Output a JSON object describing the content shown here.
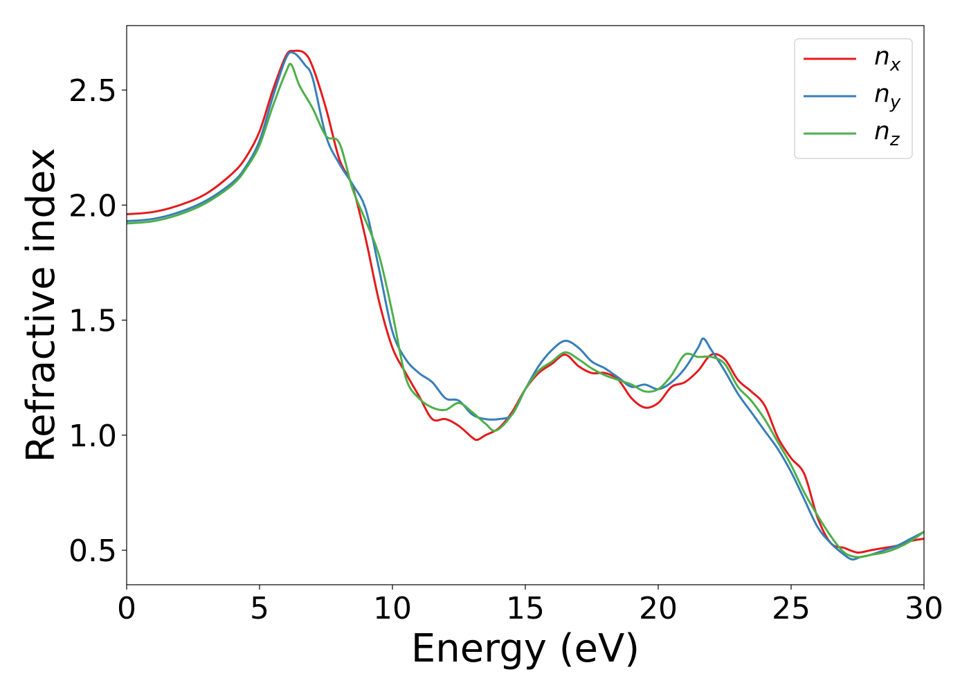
{
  "chart_data": {
    "type": "line",
    "xlabel": "Energy (eV)",
    "ylabel": "Refractive index",
    "xlim": [
      0,
      30
    ],
    "ylim": [
      0.35,
      2.78
    ],
    "xticks": [
      0,
      5,
      10,
      15,
      20,
      25,
      30
    ],
    "xtick_labels": [
      "0",
      "5",
      "10",
      "15",
      "20",
      "25",
      "30"
    ],
    "yticks": [
      0.5,
      1.0,
      1.5,
      2.0,
      2.5
    ],
    "ytick_labels": [
      "0.5",
      "1.0",
      "1.5",
      "2.0",
      "2.5"
    ],
    "grid": false,
    "legend_position": "top-right",
    "series": [
      {
        "name": "n_x",
        "label_main": "n",
        "label_sub": "x",
        "color": "#e41a1c",
        "x": [
          0,
          1,
          2,
          3,
          4,
          4.5,
          5,
          5.5,
          6,
          6.3,
          6.7,
          7,
          7.5,
          8,
          8.5,
          9,
          9.5,
          10,
          10.5,
          11,
          11.5,
          12,
          12.5,
          13,
          13.2,
          13.5,
          14,
          14.5,
          15,
          15.5,
          16,
          16.5,
          17,
          17.5,
          18,
          18.5,
          19,
          19.5,
          20,
          20.5,
          21,
          21.5,
          22,
          22.5,
          23,
          23.5,
          24,
          24.5,
          25,
          25.5,
          26,
          26.5,
          27,
          27.5,
          28,
          28.5,
          29,
          29.5,
          30
        ],
        "y": [
          1.96,
          1.97,
          2.0,
          2.05,
          2.14,
          2.21,
          2.32,
          2.5,
          2.65,
          2.67,
          2.66,
          2.6,
          2.42,
          2.2,
          2.08,
          1.85,
          1.58,
          1.38,
          1.27,
          1.17,
          1.07,
          1.07,
          1.04,
          0.99,
          0.98,
          1.0,
          1.03,
          1.1,
          1.2,
          1.27,
          1.31,
          1.35,
          1.3,
          1.27,
          1.27,
          1.24,
          1.16,
          1.12,
          1.14,
          1.21,
          1.23,
          1.28,
          1.35,
          1.33,
          1.24,
          1.19,
          1.13,
          0.99,
          0.9,
          0.83,
          0.64,
          0.53,
          0.51,
          0.49,
          0.5,
          0.51,
          0.52,
          0.54,
          0.55
        ]
      },
      {
        "name": "n_y",
        "label_main": "n",
        "label_sub": "y",
        "color": "#377eb8",
        "x": [
          0,
          1,
          2,
          3,
          4,
          4.5,
          5,
          5.5,
          6,
          6.3,
          6.7,
          7,
          7.5,
          8,
          8.5,
          9,
          9.5,
          10,
          10.5,
          11,
          11.5,
          12,
          12.5,
          13,
          13.5,
          14,
          14.5,
          15,
          15.5,
          16,
          16.5,
          17,
          17.5,
          18,
          18.5,
          19,
          19.5,
          20,
          20.5,
          21,
          21.5,
          21.7,
          22,
          22.5,
          23,
          23.5,
          24,
          24.5,
          25,
          25.5,
          26,
          26.5,
          27,
          27.3,
          27.6,
          28,
          28.5,
          29,
          29.5,
          30
        ],
        "y": [
          1.93,
          1.94,
          1.97,
          2.02,
          2.1,
          2.17,
          2.28,
          2.47,
          2.64,
          2.66,
          2.61,
          2.55,
          2.3,
          2.18,
          2.09,
          1.98,
          1.72,
          1.45,
          1.33,
          1.27,
          1.23,
          1.16,
          1.15,
          1.09,
          1.07,
          1.07,
          1.09,
          1.2,
          1.3,
          1.37,
          1.41,
          1.38,
          1.32,
          1.29,
          1.25,
          1.21,
          1.22,
          1.2,
          1.23,
          1.29,
          1.38,
          1.42,
          1.37,
          1.28,
          1.18,
          1.1,
          1.02,
          0.94,
          0.84,
          0.72,
          0.6,
          0.53,
          0.48,
          0.46,
          0.47,
          0.48,
          0.5,
          0.52,
          0.55,
          0.58
        ]
      },
      {
        "name": "n_z",
        "label_main": "n",
        "label_sub": "z",
        "color": "#4daf4a",
        "x": [
          0,
          1,
          2,
          3,
          4,
          4.5,
          5,
          5.5,
          6,
          6.2,
          6.5,
          7,
          7.5,
          8,
          8.5,
          9,
          9.5,
          10,
          10.5,
          11,
          11.5,
          12,
          12.5,
          13,
          13.5,
          13.9,
          14.5,
          15,
          15.5,
          16,
          16.5,
          17,
          17.5,
          18,
          18.5,
          19,
          19.5,
          20,
          20.5,
          21,
          21.5,
          22,
          22.5,
          23,
          23.5,
          24,
          24.5,
          25,
          25.5,
          26,
          26.5,
          27,
          27.5,
          28,
          28.5,
          29,
          29.5,
          30
        ],
        "y": [
          1.92,
          1.93,
          1.96,
          2.01,
          2.09,
          2.16,
          2.26,
          2.43,
          2.58,
          2.61,
          2.52,
          2.42,
          2.3,
          2.27,
          2.07,
          1.93,
          1.78,
          1.53,
          1.25,
          1.16,
          1.12,
          1.11,
          1.14,
          1.1,
          1.05,
          1.02,
          1.09,
          1.2,
          1.28,
          1.32,
          1.36,
          1.33,
          1.29,
          1.26,
          1.24,
          1.22,
          1.19,
          1.2,
          1.26,
          1.35,
          1.34,
          1.34,
          1.31,
          1.21,
          1.15,
          1.07,
          0.97,
          0.87,
          0.75,
          0.65,
          0.56,
          0.49,
          0.47,
          0.48,
          0.49,
          0.51,
          0.54,
          0.58
        ]
      }
    ]
  }
}
